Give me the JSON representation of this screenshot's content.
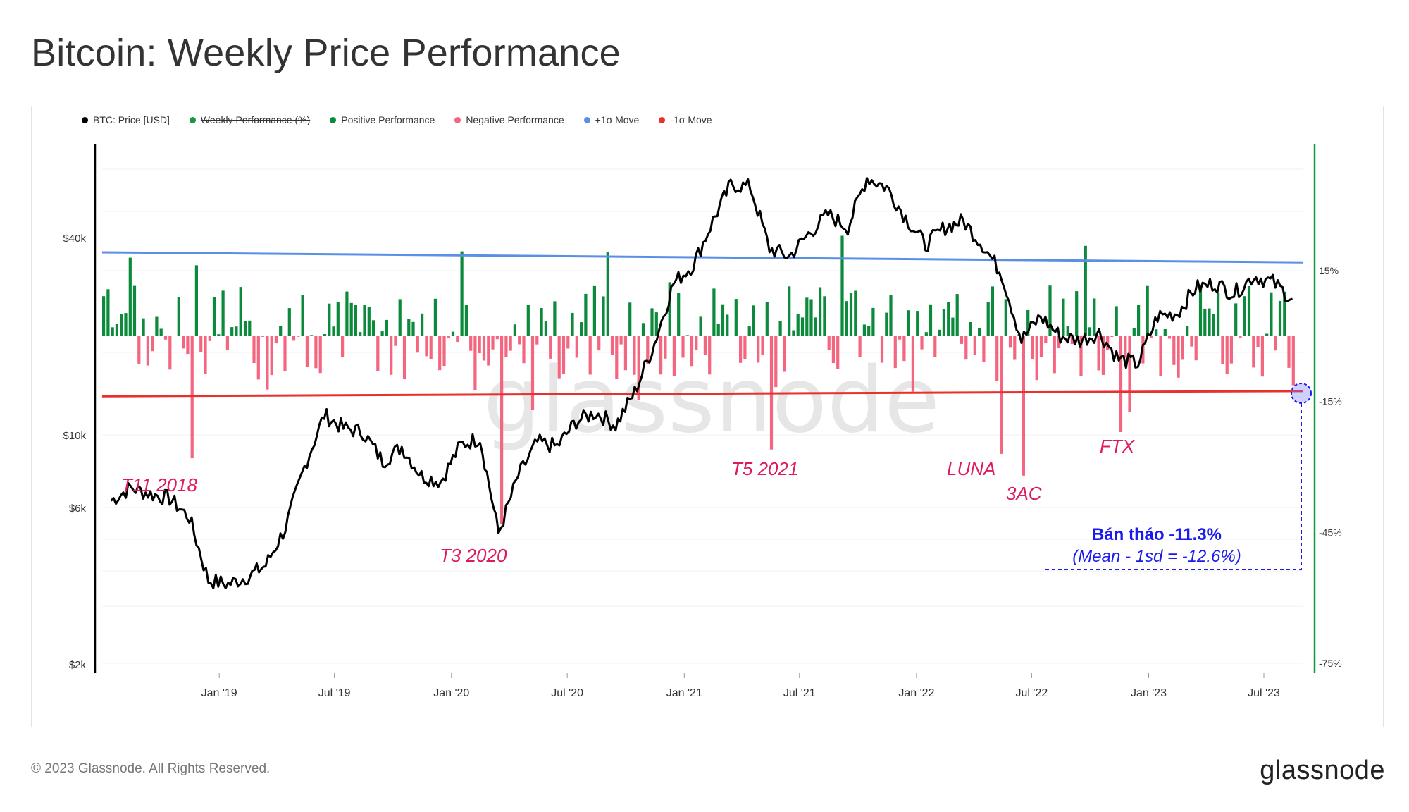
{
  "title": "Bitcoin: Weekly Price Performance",
  "footer": {
    "copyright": "© 2023 Glassnode. All Rights Reserved.",
    "logo": "glassnode"
  },
  "watermark": "glassnode",
  "legend": [
    {
      "label": "BTC: Price [USD]",
      "color": "#000000",
      "hidden": false
    },
    {
      "label": "Weekly Performance (%)",
      "color": "#1a9641",
      "hidden": true
    },
    {
      "label": "Positive Performance",
      "color": "#0a8a3a",
      "hidden": false
    },
    {
      "label": "Negative Performance",
      "color": "#f4667f",
      "hidden": false
    },
    {
      "label": "+1σ Move",
      "color": "#5b8fe6",
      "hidden": false
    },
    {
      "label": "-1σ Move",
      "color": "#e8302c",
      "hidden": false
    }
  ],
  "colors": {
    "price": "#000000",
    "positive": "#0a8a3a",
    "negative": "#f4667f",
    "plus_sigma": "#5b8fe6",
    "minus_sigma": "#e8302c",
    "annotation": "#e01a5a",
    "callout": "#1a1aee",
    "right_axis": "#1a9641"
  },
  "chart_data": {
    "type": "bar+line",
    "x_range": [
      "2018-07-01",
      "2023-09-01"
    ],
    "x_ticks": [
      "Jan '19",
      "Jul '19",
      "Jan '20",
      "Jul '20",
      "Jan '21",
      "Jul '21",
      "Jan '22",
      "Jul '22",
      "Jan '23",
      "Jul '23"
    ],
    "left_axis": {
      "scale": "log",
      "unit": "USD",
      "ticks": [
        "$40k",
        "$10k",
        "$6k",
        "$2k"
      ],
      "tick_values": [
        40000,
        10000,
        6000,
        2000
      ]
    },
    "right_axis": {
      "unit": "%",
      "ylim": [
        -75,
        45
      ],
      "ticks": [
        "15%",
        "-15%",
        "-45%",
        "-75%"
      ],
      "tick_values": [
        15,
        -15,
        -45,
        -75
      ]
    },
    "sigma_lines": {
      "plus_1sd": [
        19.2,
        16.9
      ],
      "minus_1sd": [
        -13.8,
        -12.6
      ]
    },
    "btc_price": [
      [
        "2018-07",
        6300
      ],
      [
        "2018-08",
        6900
      ],
      [
        "2018-09",
        6600
      ],
      [
        "2018-10",
        6400
      ],
      [
        "2018-11",
        5600
      ],
      [
        "2018-12",
        3600
      ],
      [
        "2019-01",
        3500
      ],
      [
        "2019-02",
        3700
      ],
      [
        "2019-03",
        4000
      ],
      [
        "2019-04",
        5200
      ],
      [
        "2019-05",
        8000
      ],
      [
        "2019-06",
        11500
      ],
      [
        "2019-07",
        10500
      ],
      [
        "2019-08",
        10200
      ],
      [
        "2019-09",
        8300
      ],
      [
        "2019-10",
        9200
      ],
      [
        "2019-11",
        7500
      ],
      [
        "2019-12",
        7200
      ],
      [
        "2020-01",
        9300
      ],
      [
        "2020-02",
        9800
      ],
      [
        "2020-03",
        5000
      ],
      [
        "2020-04",
        7500
      ],
      [
        "2020-05",
        9500
      ],
      [
        "2020-06",
        9200
      ],
      [
        "2020-07",
        11000
      ],
      [
        "2020-08",
        11700
      ],
      [
        "2020-09",
        10700
      ],
      [
        "2020-10",
        13500
      ],
      [
        "2020-11",
        19000
      ],
      [
        "2020-12",
        29000
      ],
      [
        "2021-01",
        33000
      ],
      [
        "2021-02",
        45000
      ],
      [
        "2021-03",
        58000
      ],
      [
        "2021-04",
        57000
      ],
      [
        "2021-05",
        37000
      ],
      [
        "2021-06",
        35000
      ],
      [
        "2021-07",
        41000
      ],
      [
        "2021-08",
        47000
      ],
      [
        "2021-09",
        43000
      ],
      [
        "2021-10",
        61000
      ],
      [
        "2021-11",
        57000
      ],
      [
        "2021-12",
        46000
      ],
      [
        "2022-01",
        38000
      ],
      [
        "2022-02",
        43000
      ],
      [
        "2022-03",
        45000
      ],
      [
        "2022-04",
        38000
      ],
      [
        "2022-05",
        31000
      ],
      [
        "2022-06",
        19500
      ],
      [
        "2022-07",
        23000
      ],
      [
        "2022-08",
        20000
      ],
      [
        "2022-09",
        19400
      ],
      [
        "2022-10",
        20500
      ],
      [
        "2022-11",
        17000
      ],
      [
        "2022-12",
        16500
      ],
      [
        "2023-01",
        23000
      ],
      [
        "2023-02",
        23500
      ],
      [
        "2023-03",
        28000
      ],
      [
        "2023-04",
        29000
      ],
      [
        "2023-05",
        27000
      ],
      [
        "2023-06",
        30500
      ],
      [
        "2023-07",
        29200
      ],
      [
        "2023-08",
        26000
      ]
    ],
    "weekly_performance_pct_highlights": [
      {
        "label": "T11 2018",
        "date": "2018-11",
        "value": -28
      },
      {
        "label": "T3 2020",
        "date": "2020-03",
        "value": -43
      },
      {
        "label": "T5 2021",
        "date": "2021-05",
        "value": -26
      },
      {
        "label": "LUNA",
        "date": "2022-05",
        "value": -27
      },
      {
        "label": "3AC",
        "date": "2022-06",
        "value": -32
      },
      {
        "label": "FTX",
        "date": "2022-11",
        "value": -22
      },
      {
        "label": "latest",
        "date": "2023-08",
        "value": -11.3
      }
    ],
    "annotations": {
      "t11": "T11 2018",
      "t3": "T3 2020",
      "t5": "T5 2021",
      "luna": "LUNA",
      "ac3": "3AC",
      "ftx": "FTX",
      "callout_title": "Bán tháo -11.3%",
      "callout_sub": "(Mean - 1sd = -12.6%)"
    }
  }
}
